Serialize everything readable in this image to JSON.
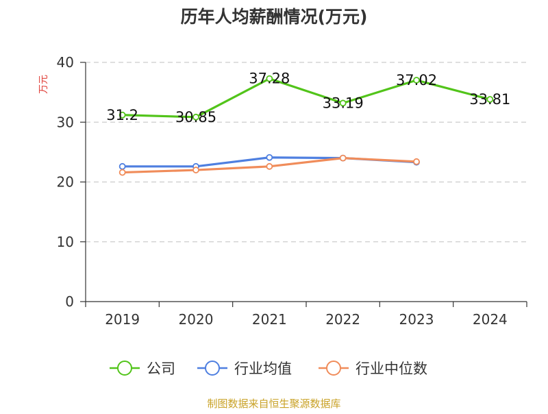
{
  "chart_data": {
    "type": "line",
    "title": "历年人均薪酬情况(万元)",
    "xlabel": "",
    "ylabel": "万元",
    "categories": [
      "2019",
      "2020",
      "2021",
      "2022",
      "2023",
      "2024"
    ],
    "ylim": [
      0,
      40
    ],
    "yticks": [
      0,
      10,
      20,
      30,
      40
    ],
    "grid": true,
    "legend_position": "bottom",
    "series": [
      {
        "name": "公司",
        "values": [
          31.2,
          30.85,
          37.28,
          33.19,
          37.02,
          33.81
        ],
        "labels": [
          "31.2",
          "30.85",
          "37.28",
          "33.19",
          "37.02",
          "33.81"
        ],
        "color": "#52c41a"
      },
      {
        "name": "行业均值",
        "values": [
          22.6,
          22.6,
          24.1,
          24.0,
          23.3,
          null
        ],
        "color": "#4e7fe0"
      },
      {
        "name": "行业中位数",
        "values": [
          21.6,
          22.0,
          22.6,
          24.0,
          23.4,
          null
        ],
        "color": "#f08c5a"
      }
    ]
  },
  "footer": {
    "source": "制图数据来自恒生聚源数据库"
  },
  "colors": {
    "axis": "#333333",
    "grid": "#cccccc",
    "ylabel": "#e0413a",
    "source": "#c9a227"
  }
}
